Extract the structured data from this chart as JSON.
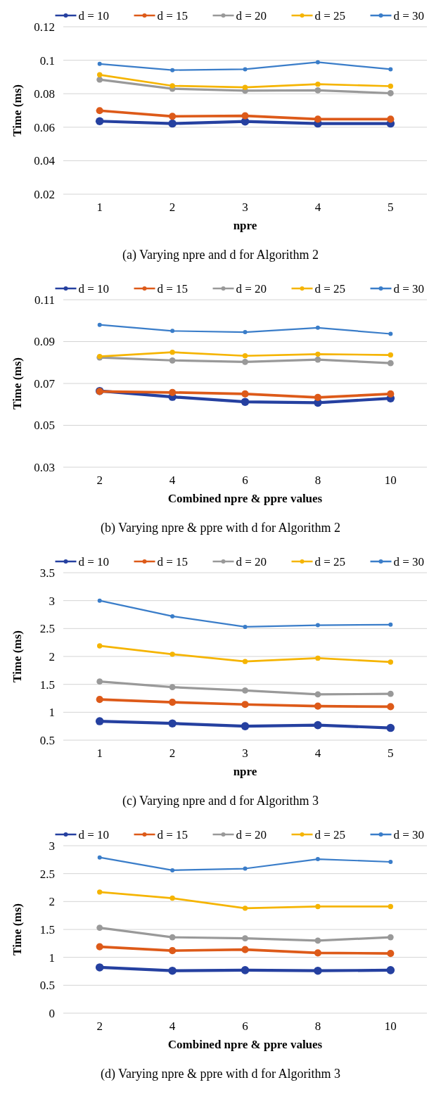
{
  "chart_data": [
    {
      "type": "line",
      "xlabel": "npre",
      "ylabel": "Time (ms)",
      "categories": [
        "1",
        "2",
        "3",
        "4",
        "5"
      ],
      "ylim": [
        0.02,
        0.12
      ],
      "yticks": [
        0.02,
        0.04,
        0.06,
        0.08,
        0.1,
        0.12
      ],
      "grid": "y",
      "legend": "top",
      "marker": "circle",
      "annotations": [
        "(a) Varying npre and d for Algorithm 2"
      ],
      "series": [
        {
          "name": "d = 10",
          "color": "#2540a0",
          "values": [
            0.0636,
            0.0622,
            0.0634,
            0.0622,
            0.0622
          ]
        },
        {
          "name": "d = 15",
          "color": "#dd5a19",
          "values": [
            0.0699,
            0.0665,
            0.0668,
            0.0648,
            0.0648
          ]
        },
        {
          "name": "d = 20",
          "color": "#999999",
          "values": [
            0.0884,
            0.083,
            0.0818,
            0.082,
            0.0803
          ]
        },
        {
          "name": "d = 25",
          "color": "#f5b400",
          "values": [
            0.0913,
            0.0847,
            0.0838,
            0.0857,
            0.0845
          ]
        },
        {
          "name": "d = 30",
          "color": "#3a7dc9",
          "values": [
            0.0978,
            0.0941,
            0.0946,
            0.0988,
            0.0946
          ]
        }
      ]
    },
    {
      "type": "line",
      "xlabel": "Combined npre & ppre values",
      "ylabel": "Time (ms)",
      "categories": [
        "2",
        "4",
        "6",
        "8",
        "10"
      ],
      "ylim": [
        0.03,
        0.11
      ],
      "yticks": [
        0.03,
        0.05,
        0.07,
        0.09,
        0.11
      ],
      "grid": "y",
      "legend": "top",
      "marker": "circle",
      "annotations": [
        "(b) Varying npre & ppre with d for Algorithm 2"
      ],
      "series": [
        {
          "name": "d = 10",
          "color": "#2540a0",
          "values": [
            0.0664,
            0.0636,
            0.0612,
            0.0608,
            0.0629
          ]
        },
        {
          "name": "d = 15",
          "color": "#dd5a19",
          "values": [
            0.0662,
            0.0657,
            0.065,
            0.0633,
            0.065
          ]
        },
        {
          "name": "d = 20",
          "color": "#999999",
          "values": [
            0.0824,
            0.081,
            0.0803,
            0.0814,
            0.0797
          ]
        },
        {
          "name": "d = 25",
          "color": "#f5b400",
          "values": [
            0.0829,
            0.0849,
            0.0832,
            0.084,
            0.0836
          ]
        },
        {
          "name": "d = 30",
          "color": "#3a7dc9",
          "values": [
            0.098,
            0.0951,
            0.0945,
            0.0966,
            0.0937
          ]
        }
      ]
    },
    {
      "type": "line",
      "xlabel": "npre",
      "ylabel": "Time (ms)",
      "categories": [
        "1",
        "2",
        "3",
        "4",
        "5"
      ],
      "ylim": [
        0.5,
        3.5
      ],
      "yticks": [
        0.5,
        1,
        1.5,
        2,
        2.5,
        3,
        3.5
      ],
      "grid": "y",
      "legend": "top",
      "marker": "circle",
      "annotations": [
        "(c) Varying npre and d for Algorithm 3"
      ],
      "series": [
        {
          "name": "d = 10",
          "color": "#2540a0",
          "values": [
            0.84,
            0.8,
            0.75,
            0.77,
            0.72
          ]
        },
        {
          "name": "d = 15",
          "color": "#dd5a19",
          "values": [
            1.23,
            1.18,
            1.14,
            1.11,
            1.1
          ]
        },
        {
          "name": "d = 20",
          "color": "#999999",
          "values": [
            1.55,
            1.45,
            1.39,
            1.32,
            1.33
          ]
        },
        {
          "name": "d = 25",
          "color": "#f5b400",
          "values": [
            2.19,
            2.04,
            1.91,
            1.97,
            1.9
          ]
        },
        {
          "name": "d = 30",
          "color": "#3a7dc9",
          "values": [
            3.0,
            2.72,
            2.53,
            2.56,
            2.57
          ]
        }
      ]
    },
    {
      "type": "line",
      "xlabel": "Combined npre & ppre values",
      "ylabel": "Time (ms)",
      "categories": [
        "2",
        "4",
        "6",
        "8",
        "10"
      ],
      "ylim": [
        0,
        3
      ],
      "yticks": [
        0,
        0.5,
        1,
        1.5,
        2,
        2.5,
        3
      ],
      "grid": "y",
      "legend": "top",
      "marker": "circle",
      "annotations": [
        "(d) Varying npre & ppre with d for Algorithm 3"
      ],
      "series": [
        {
          "name": "d = 10",
          "color": "#2540a0",
          "values": [
            0.82,
            0.76,
            0.77,
            0.76,
            0.77
          ]
        },
        {
          "name": "d = 15",
          "color": "#dd5a19",
          "values": [
            1.19,
            1.12,
            1.14,
            1.08,
            1.07
          ]
        },
        {
          "name": "d = 20",
          "color": "#999999",
          "values": [
            1.53,
            1.36,
            1.34,
            1.3,
            1.36
          ]
        },
        {
          "name": "d = 25",
          "color": "#f5b400",
          "values": [
            2.17,
            2.06,
            1.88,
            1.91,
            1.91
          ]
        },
        {
          "name": "d = 30",
          "color": "#3a7dc9",
          "values": [
            2.79,
            2.56,
            2.59,
            2.76,
            2.71
          ]
        }
      ]
    }
  ]
}
